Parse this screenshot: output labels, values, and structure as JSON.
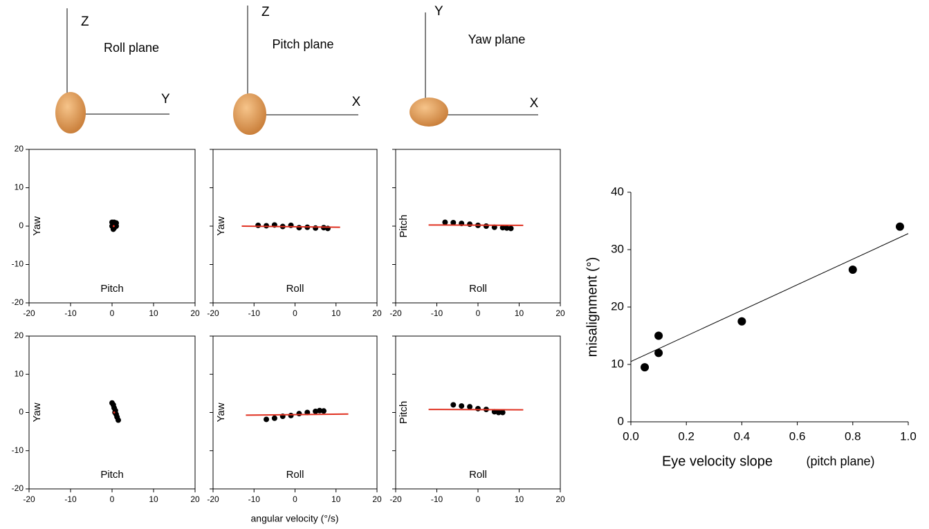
{
  "heads": [
    {
      "axis_v": "Z",
      "axis_h": "Y",
      "plane": "Roll plane"
    },
    {
      "axis_v": "Z",
      "axis_h": "X",
      "plane": "Pitch plane"
    },
    {
      "axis_v": "Y",
      "axis_h": "X",
      "plane": "Yaw plane"
    }
  ],
  "shared_xlabel": "angular velocity (°/s)",
  "chart_data": [
    {
      "type": "scatter",
      "ylabel": "Yaw",
      "xlabel": "Pitch",
      "xlim": [
        -20,
        20
      ],
      "ylim": [
        -20,
        20
      ],
      "xticks": [
        -20,
        -10,
        0,
        10,
        20
      ],
      "yticks": [
        -20,
        -10,
        0,
        10,
        20
      ],
      "show_ytick_labels": true,
      "color": "#000000",
      "x": [
        0,
        0.5,
        1,
        0,
        0.5,
        1,
        0.3
      ],
      "values": [
        1,
        1,
        0.8,
        0,
        -0.5,
        0,
        -0.8
      ],
      "fit": {
        "x": [
          0.4
        ],
        "values": [
          0
        ],
        "color": "#e03020"
      }
    },
    {
      "type": "scatter",
      "ylabel": "Yaw",
      "xlabel": "Roll",
      "xlim": [
        -20,
        20
      ],
      "ylim": [
        -20,
        20
      ],
      "xticks": [
        -20,
        -10,
        0,
        10,
        20
      ],
      "yticks": [
        -20,
        -10,
        0,
        10,
        20
      ],
      "show_ytick_labels": false,
      "color": "#000000",
      "x": [
        -9,
        -7,
        -5,
        -3,
        -1,
        1,
        3,
        5,
        7,
        8
      ],
      "values": [
        0.2,
        0.1,
        0.3,
        -0.1,
        0.2,
        -0.4,
        -0.3,
        -0.5,
        -0.4,
        -0.6
      ],
      "fit": {
        "x": [
          -13,
          11
        ],
        "values": [
          0,
          -0.3
        ],
        "color": "#e03020"
      }
    },
    {
      "type": "scatter",
      "ylabel": "Pitch",
      "xlabel": "Roll",
      "xlim": [
        -20,
        20
      ],
      "ylim": [
        -20,
        20
      ],
      "xticks": [
        -20,
        -10,
        0,
        10,
        20
      ],
      "yticks": [
        -20,
        -10,
        0,
        10,
        20
      ],
      "show_ytick_labels": false,
      "color": "#000000",
      "x": [
        -8,
        -6,
        -4,
        -2,
        0,
        2,
        4,
        6,
        7,
        8
      ],
      "values": [
        1,
        0.9,
        0.7,
        0.5,
        0.2,
        0,
        -0.3,
        -0.4,
        -0.5,
        -0.6
      ],
      "fit": {
        "x": [
          -12,
          11
        ],
        "values": [
          0.3,
          0.2
        ],
        "color": "#e03020"
      }
    },
    {
      "type": "scatter",
      "ylabel": "Yaw",
      "xlabel": "Pitch",
      "xlim": [
        -20,
        20
      ],
      "ylim": [
        -20,
        20
      ],
      "xticks": [
        -20,
        -10,
        0,
        10,
        20
      ],
      "yticks": [
        -20,
        -10,
        0,
        10,
        20
      ],
      "show_ytick_labels": true,
      "color": "#000000",
      "x": [
        0,
        0.3,
        0.5,
        0.8,
        1,
        1.2,
        1.5,
        0.7
      ],
      "values": [
        2.5,
        2,
        1.2,
        0.5,
        -0.5,
        -1.2,
        -2,
        0
      ],
      "fit": {
        "x": [
          0.5
        ],
        "values": [
          0
        ],
        "color": "#e03020"
      }
    },
    {
      "type": "scatter",
      "ylabel": "Yaw",
      "xlabel": "Roll",
      "xlim": [
        -20,
        20
      ],
      "ylim": [
        -20,
        20
      ],
      "xticks": [
        -20,
        -10,
        0,
        10,
        20
      ],
      "yticks": [
        -20,
        -10,
        0,
        10,
        20
      ],
      "show_ytick_labels": false,
      "color": "#000000",
      "x": [
        -7,
        -5,
        -3,
        -1,
        1,
        3,
        5,
        6,
        7
      ],
      "values": [
        -1.8,
        -1.5,
        -1,
        -0.8,
        -0.3,
        0,
        0.3,
        0.5,
        0.4
      ],
      "fit": {
        "x": [
          -12,
          13
        ],
        "values": [
          -0.7,
          -0.4
        ],
        "color": "#e03020"
      }
    },
    {
      "type": "scatter",
      "ylabel": "Pitch",
      "xlabel": "Roll",
      "xlim": [
        -20,
        20
      ],
      "ylim": [
        -20,
        20
      ],
      "xticks": [
        -20,
        -10,
        0,
        10,
        20
      ],
      "yticks": [
        -20,
        -10,
        0,
        10,
        20
      ],
      "show_ytick_labels": false,
      "color": "#000000",
      "x": [
        -6,
        -4,
        -2,
        0,
        2,
        4,
        5,
        6
      ],
      "values": [
        2,
        1.7,
        1.5,
        1,
        0.8,
        0.2,
        0,
        0
      ],
      "fit": {
        "x": [
          -12,
          11
        ],
        "values": [
          0.8,
          0.7
        ],
        "color": "#e03020"
      }
    },
    {
      "type": "scatter",
      "ylabel": "misalignment (°)",
      "xlabel": "Eye velocity slope",
      "xlabel_note": "(pitch plane)",
      "xlim": [
        0,
        1
      ],
      "ylim": [
        0,
        40
      ],
      "xticks": [
        {
          "value": 0,
          "label": "0.0"
        },
        {
          "value": 0.2,
          "label": "0.2"
        },
        {
          "value": 0.4,
          "label": "0.4"
        },
        {
          "value": 0.6,
          "label": "0.6"
        },
        {
          "value": 0.8,
          "label": "0.8"
        },
        {
          "value": 1,
          "label": "1.0"
        }
      ],
      "yticks": [
        0,
        10,
        20,
        30,
        40
      ],
      "show_ytick_labels": true,
      "color": "#000000",
      "x": [
        0.05,
        0.1,
        0.1,
        0.4,
        0.8,
        0.97
      ],
      "values": [
        9.5,
        12,
        15,
        17.5,
        26.5,
        34
      ],
      "fit": {
        "x": [
          0,
          1
        ],
        "values": [
          10.5,
          32.8
        ],
        "color": "#000000"
      }
    }
  ]
}
